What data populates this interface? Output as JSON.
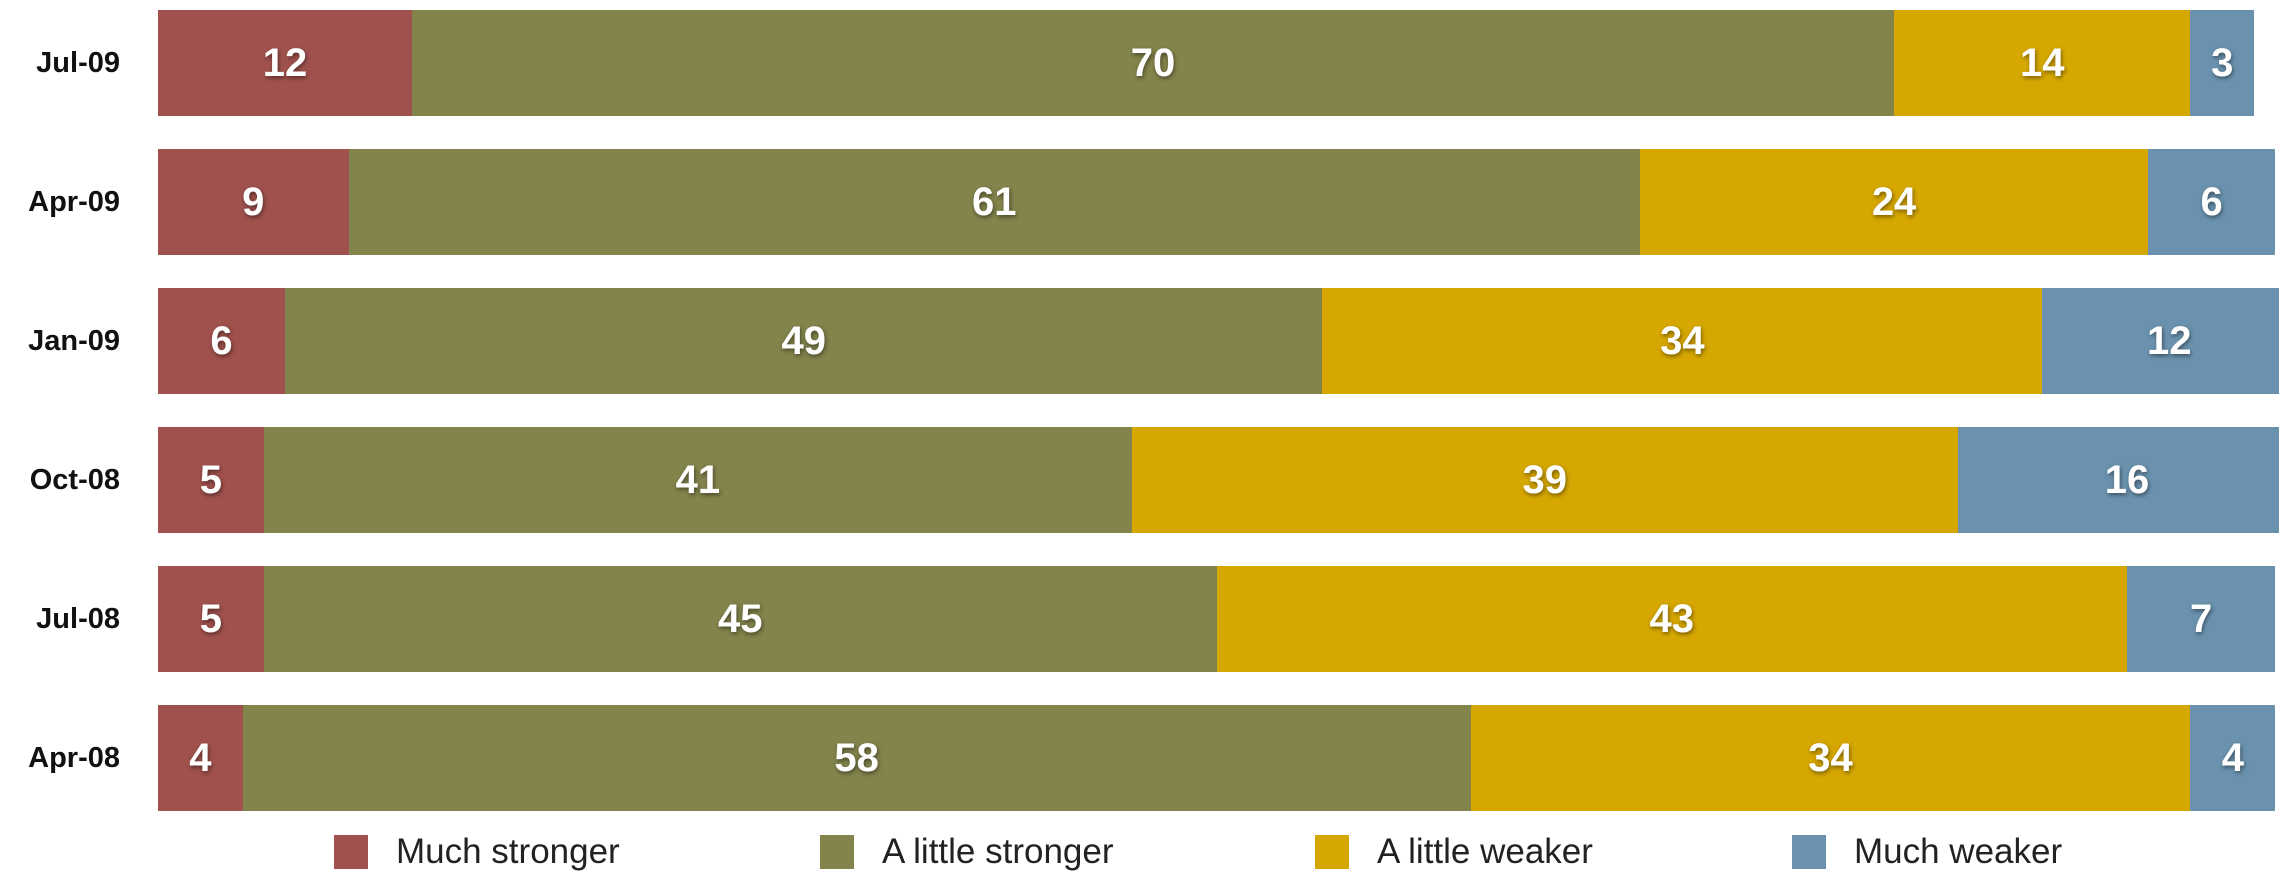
{
  "chart_data": {
    "type": "bar",
    "orientation": "horizontal",
    "stacked": true,
    "categories": [
      "Jul-09",
      "Apr-09",
      "Jan-09",
      "Oct-08",
      "Jul-08",
      "Apr-08"
    ],
    "series": [
      {
        "name": "Much stronger",
        "color": "#a0514d",
        "values": [
          12,
          9,
          6,
          5,
          5,
          4
        ]
      },
      {
        "name": "A little stronger",
        "color": "#83834c",
        "values": [
          70,
          61,
          49,
          41,
          45,
          58
        ]
      },
      {
        "name": "A little weaker",
        "color": "#d6a700",
        "values": [
          14,
          24,
          34,
          39,
          43,
          34
        ]
      },
      {
        "name": "Much weaker",
        "color": "#6a92ae",
        "values": [
          3,
          6,
          12,
          16,
          7,
          4
        ]
      }
    ],
    "title": "",
    "xlabel": "",
    "ylabel": "",
    "grid": false,
    "legend_position": "bottom"
  }
}
